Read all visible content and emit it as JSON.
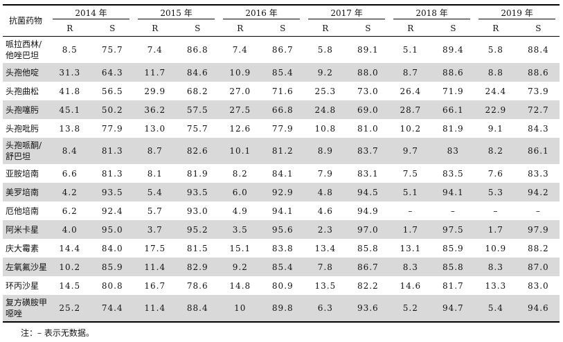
{
  "table": {
    "corner_label": "抗菌药物",
    "years": [
      "2014 年",
      "2015 年",
      "2016 年",
      "2017 年",
      "2018 年",
      "2019 年"
    ],
    "sub_headers": [
      "R",
      "S"
    ],
    "rows": [
      {
        "drug": "哌拉西林/他唑巴坦",
        "values": [
          "8.5",
          "75.7",
          "7.4",
          "86.8",
          "7.4",
          "86.7",
          "5.8",
          "89.1",
          "5.1",
          "89.4",
          "5.8",
          "88.4"
        ]
      },
      {
        "drug": "头孢他啶",
        "values": [
          "31.3",
          "64.3",
          "11.7",
          "84.6",
          "10.9",
          "85.4",
          "9.2",
          "88.0",
          "8.7",
          "88.6",
          "8.8",
          "88.6"
        ]
      },
      {
        "drug": "头孢曲松",
        "values": [
          "41.8",
          "56.5",
          "29.9",
          "68.2",
          "27.0",
          "71.6",
          "25.3",
          "73.0",
          "26.4",
          "71.9",
          "24.4",
          "73.9"
        ]
      },
      {
        "drug": "头孢噻肟",
        "values": [
          "45.1",
          "50.2",
          "36.2",
          "57.5",
          "27.5",
          "66.8",
          "24.8",
          "69.0",
          "28.7",
          "66.1",
          "22.9",
          "72.7"
        ]
      },
      {
        "drug": "头孢吡肟",
        "values": [
          "13.8",
          "77.9",
          "13.0",
          "75.7",
          "12.6",
          "77.9",
          "10.8",
          "81.0",
          "10.2",
          "81.9",
          "9.1",
          "84.3"
        ]
      },
      {
        "drug": "头孢哌酮/舒巴坦",
        "values": [
          "8.4",
          "81.3",
          "8.7",
          "82.6",
          "10.1",
          "81.2",
          "8.9",
          "83.7",
          "9.7",
          "83",
          "8.2",
          "86.1"
        ]
      },
      {
        "drug": "亚胺培南",
        "values": [
          "6.6",
          "81.3",
          "8.1",
          "81.9",
          "8.2",
          "84.1",
          "7.9",
          "83.1",
          "7.5",
          "83.5",
          "7.6",
          "83.3"
        ]
      },
      {
        "drug": "美罗培南",
        "values": [
          "4.2",
          "93.5",
          "5.4",
          "93.5",
          "6.0",
          "92.9",
          "4.8",
          "94.5",
          "5.1",
          "94.1",
          "5.3",
          "94.2"
        ]
      },
      {
        "drug": "厄他培南",
        "values": [
          "6.2",
          "92.4",
          "5.7",
          "93.0",
          "4.9",
          "94.1",
          "4.6",
          "94.9",
          "–",
          "–",
          "–",
          "–"
        ]
      },
      {
        "drug": "阿米卡星",
        "values": [
          "4.0",
          "95.0",
          "3.7",
          "95.2",
          "3.5",
          "95.6",
          "2.3",
          "97.0",
          "1.7",
          "97.5",
          "1.7",
          "97.9"
        ]
      },
      {
        "drug": "庆大霉素",
        "values": [
          "14.4",
          "84.0",
          "17.5",
          "81.5",
          "15.1",
          "83.8",
          "13.4",
          "85.8",
          "13.1",
          "85.9",
          "10.9",
          "88.2"
        ]
      },
      {
        "drug": "左氧氟沙星",
        "values": [
          "10.2",
          "85.9",
          "11.4",
          "82.9",
          "9.2",
          "85.4",
          "7.8",
          "86.7",
          "8.3",
          "85.8",
          "8.3",
          "87.0"
        ]
      },
      {
        "drug": "环丙沙星",
        "values": [
          "14.5",
          "80.8",
          "16.7",
          "78.6",
          "14.8",
          "80.9",
          "13.5",
          "82.2",
          "14.6",
          "81.7",
          "13.3",
          "83.0"
        ]
      },
      {
        "drug": "复方磺胺甲噁唑",
        "values": [
          "25.2",
          "74.4",
          "11.4",
          "88.4",
          "10",
          "89.8",
          "6.3",
          "93.6",
          "5.2",
          "94.7",
          "5.4",
          "94.6"
        ]
      }
    ]
  },
  "note": "注：– 表示无数据。",
  "colors": {
    "shade": "#d9d9d9",
    "rule": "#000000"
  }
}
